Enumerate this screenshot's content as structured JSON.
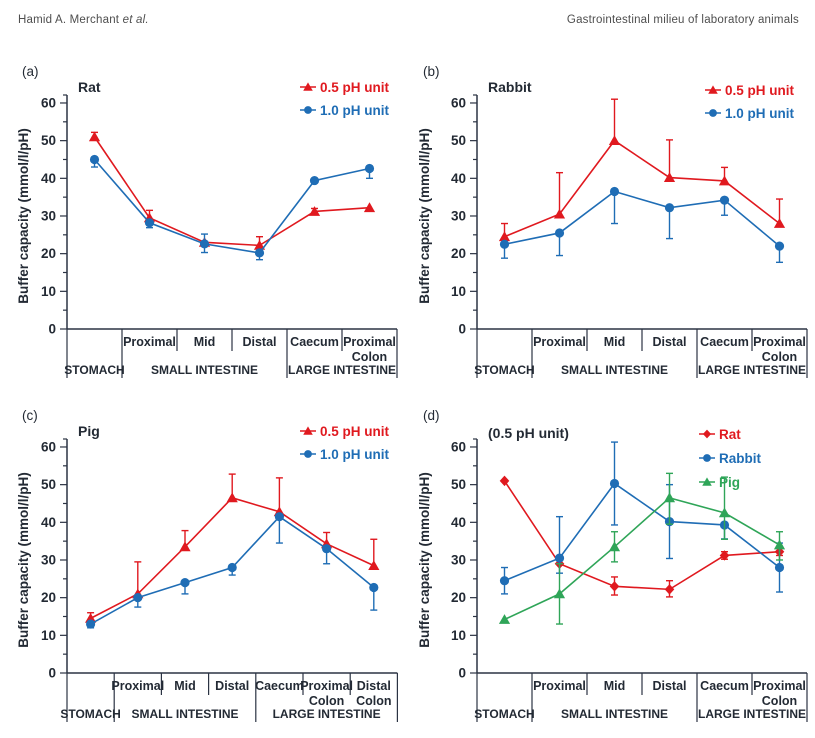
{
  "header": {
    "author": "Hamid A. Merchant",
    "author_suffix": "et al.",
    "title": "Gastrointestinal milieu of laboratory animals"
  },
  "colors": {
    "red": "#e0191f",
    "blue": "#1f6db5",
    "green": "#2fa558",
    "axis": "#2b3343",
    "text": "#232a34"
  },
  "axis": {
    "ylabel": "Buffer capacity (mmol/l/pH)",
    "ymin": 0,
    "ymax": 60,
    "ytick_step": 10,
    "yminor_step": 5
  },
  "chart_data": [
    {
      "id": "a",
      "panel_label": "(a)",
      "title": "Rat",
      "type": "line",
      "ylim": [
        0,
        60
      ],
      "categories": [
        "Stomach",
        "Proximal",
        "Mid",
        "Distal",
        "Caecum",
        "Proximal Colon"
      ],
      "cat_row1": [
        [],
        [
          "Proximal"
        ],
        [
          "Mid"
        ],
        [
          "Distal"
        ],
        [
          "Caecum"
        ],
        [
          "Proximal",
          "Colon"
        ]
      ],
      "groups": [
        {
          "label": "STOMACH",
          "from": 0,
          "to": 1
        },
        {
          "label": "SMALL INTESTINE",
          "from": 1,
          "to": 4
        },
        {
          "label": "LARGE INTESTINE",
          "from": 4,
          "to": 6
        }
      ],
      "legend": [
        {
          "label": "0.5 pH unit",
          "color": "red",
          "marker": "triangle"
        },
        {
          "label": "1.0 pH unit",
          "color": "blue",
          "marker": "circle"
        }
      ],
      "legend_pos": {
        "x": 288,
        "y": 37,
        "dy": 23
      },
      "series": [
        {
          "name": "0.5 pH unit",
          "color": "red",
          "marker": "triangle",
          "values": [
            51,
            29.5,
            23,
            22.2,
            31.2,
            32.2
          ],
          "err_lo": [
            0,
            0,
            0,
            0,
            0,
            0
          ],
          "err_hi": [
            1.2,
            2,
            0,
            2.3,
            0.8,
            0
          ]
        },
        {
          "name": "1.0 pH unit",
          "color": "blue",
          "marker": "circle",
          "values": [
            45,
            28.2,
            22.6,
            20.2,
            39.4,
            42.6
          ],
          "err_lo": [
            2,
            1.3,
            2.3,
            1.8,
            0,
            2.6
          ],
          "err_hi": [
            0,
            0,
            2.6,
            0,
            0,
            0
          ]
        }
      ]
    },
    {
      "id": "b",
      "panel_label": "(b)",
      "title": "Rabbit",
      "type": "line",
      "ylim": [
        0,
        60
      ],
      "categories": [
        "Stomach",
        "Proximal",
        "Mid",
        "Distal",
        "Caecum",
        "Proximal Colon"
      ],
      "cat_row1": [
        [],
        [
          "Proximal"
        ],
        [
          "Mid"
        ],
        [
          "Distal"
        ],
        [
          "Caecum"
        ],
        [
          "Proximal",
          "Colon"
        ]
      ],
      "groups": [
        {
          "label": "STOMACH",
          "from": 0,
          "to": 1
        },
        {
          "label": "SMALL INTESTINE",
          "from": 1,
          "to": 4
        },
        {
          "label": "LARGE INTESTINE",
          "from": 4,
          "to": 6
        }
      ],
      "legend": [
        {
          "label": "0.5 pH unit",
          "color": "red",
          "marker": "triangle"
        },
        {
          "label": "1.0 pH unit",
          "color": "blue",
          "marker": "circle"
        }
      ],
      "legend_pos": {
        "x": 292,
        "y": 40,
        "dy": 23
      },
      "series": [
        {
          "name": "0.5 pH unit",
          "color": "red",
          "marker": "triangle",
          "values": [
            24.5,
            30.5,
            50,
            40.2,
            39.3,
            28
          ],
          "err_lo": [
            0,
            0,
            0,
            0,
            0,
            0
          ],
          "err_hi": [
            3.5,
            11,
            11,
            10,
            3.6,
            6.5
          ]
        },
        {
          "name": "1.0 pH unit",
          "color": "blue",
          "marker": "circle",
          "values": [
            22.5,
            25.5,
            36.5,
            32.2,
            34.2,
            22
          ],
          "err_lo": [
            3.7,
            6,
            8.5,
            8.2,
            4,
            4.3
          ],
          "err_hi": [
            0,
            0,
            0,
            0,
            0,
            0
          ]
        }
      ]
    },
    {
      "id": "c",
      "panel_label": "(c)",
      "title": "Pig",
      "type": "line",
      "ylim": [
        0,
        60
      ],
      "categories": [
        "Stomach",
        "Proximal",
        "Mid",
        "Distal",
        "Caecum",
        "Proximal Colon",
        "Distal Colon"
      ],
      "cat_row1": [
        [],
        [
          "Proximal"
        ],
        [
          "Mid"
        ],
        [
          "Distal"
        ],
        [
          "Caecum"
        ],
        [
          "Proximal",
          "Colon"
        ],
        [
          "Distal",
          "Colon"
        ]
      ],
      "groups": [
        {
          "label": "STOMACH",
          "from": 0,
          "to": 1
        },
        {
          "label": "SMALL INTESTINE",
          "from": 1,
          "to": 4
        },
        {
          "label": "LARGE INTESTINE",
          "from": 4,
          "to": 7
        }
      ],
      "legend": [
        {
          "label": "0.5 pH unit",
          "color": "red",
          "marker": "triangle"
        },
        {
          "label": "1.0 pH unit",
          "color": "blue",
          "marker": "circle"
        }
      ],
      "legend_pos": {
        "x": 288,
        "y": 37,
        "dy": 23
      },
      "series": [
        {
          "name": "0.5 pH unit",
          "color": "red",
          "marker": "triangle",
          "values": [
            14.5,
            21,
            33.5,
            46.5,
            42.8,
            34.3,
            28.5
          ],
          "err_lo": [
            0,
            0,
            0,
            0,
            0,
            0,
            0
          ],
          "err_hi": [
            1.5,
            8.5,
            4.3,
            6.3,
            9,
            3,
            7
          ]
        },
        {
          "name": "1.0 pH unit",
          "color": "blue",
          "marker": "circle",
          "values": [
            13,
            20,
            24,
            28,
            41.5,
            33,
            22.7
          ],
          "err_lo": [
            1,
            2.5,
            3,
            2,
            7,
            4,
            6
          ],
          "err_hi": [
            0,
            0,
            0,
            0,
            0,
            0,
            0
          ]
        }
      ]
    },
    {
      "id": "d",
      "panel_label": "(d)",
      "title": "(0.5 pH unit)",
      "type": "line",
      "ylim": [
        0,
        60
      ],
      "categories": [
        "Stomach",
        "Proximal",
        "Mid",
        "Distal",
        "Caecum",
        "Proximal Colon"
      ],
      "cat_row1": [
        [],
        [
          "Proximal"
        ],
        [
          "Mid"
        ],
        [
          "Distal"
        ],
        [
          "Caecum"
        ],
        [
          "Proximal",
          "Colon"
        ]
      ],
      "groups": [
        {
          "label": "STOMACH",
          "from": 0,
          "to": 1
        },
        {
          "label": "SMALL INTESTINE",
          "from": 1,
          "to": 4
        },
        {
          "label": "LARGE INTESTINE",
          "from": 4,
          "to": 6
        }
      ],
      "legend": [
        {
          "label": "Rat",
          "color": "red",
          "marker": "diamond"
        },
        {
          "label": "Rabbit",
          "color": "blue",
          "marker": "circle"
        },
        {
          "label": "Pig",
          "color": "green",
          "marker": "triangle"
        }
      ],
      "legend_pos": {
        "x": 286,
        "y": 40,
        "dy": 24
      },
      "series": [
        {
          "name": "Rat",
          "color": "red",
          "marker": "diamond",
          "values": [
            51,
            29,
            23,
            22.2,
            31.2,
            32.2
          ],
          "err_lo": [
            0,
            0,
            2.3,
            2,
            1,
            1
          ],
          "err_hi": [
            0,
            0,
            2.5,
            2.3,
            1,
            1
          ]
        },
        {
          "name": "Rabbit",
          "color": "blue",
          "marker": "circle",
          "values": [
            24.5,
            30.5,
            50.3,
            40.2,
            39.3,
            28
          ],
          "err_lo": [
            3.5,
            4,
            11,
            9.8,
            3.7,
            6.5
          ],
          "err_hi": [
            3.5,
            11,
            11,
            9.8,
            0,
            6.5
          ]
        },
        {
          "name": "Pig",
          "color": "green",
          "marker": "triangle",
          "values": [
            14.2,
            21,
            33.5,
            46.5,
            42.5,
            34
          ],
          "err_lo": [
            0,
            8,
            4,
            7,
            7,
            4
          ],
          "err_hi": [
            0,
            8,
            4,
            6.5,
            9.5,
            3.5
          ]
        }
      ]
    }
  ]
}
